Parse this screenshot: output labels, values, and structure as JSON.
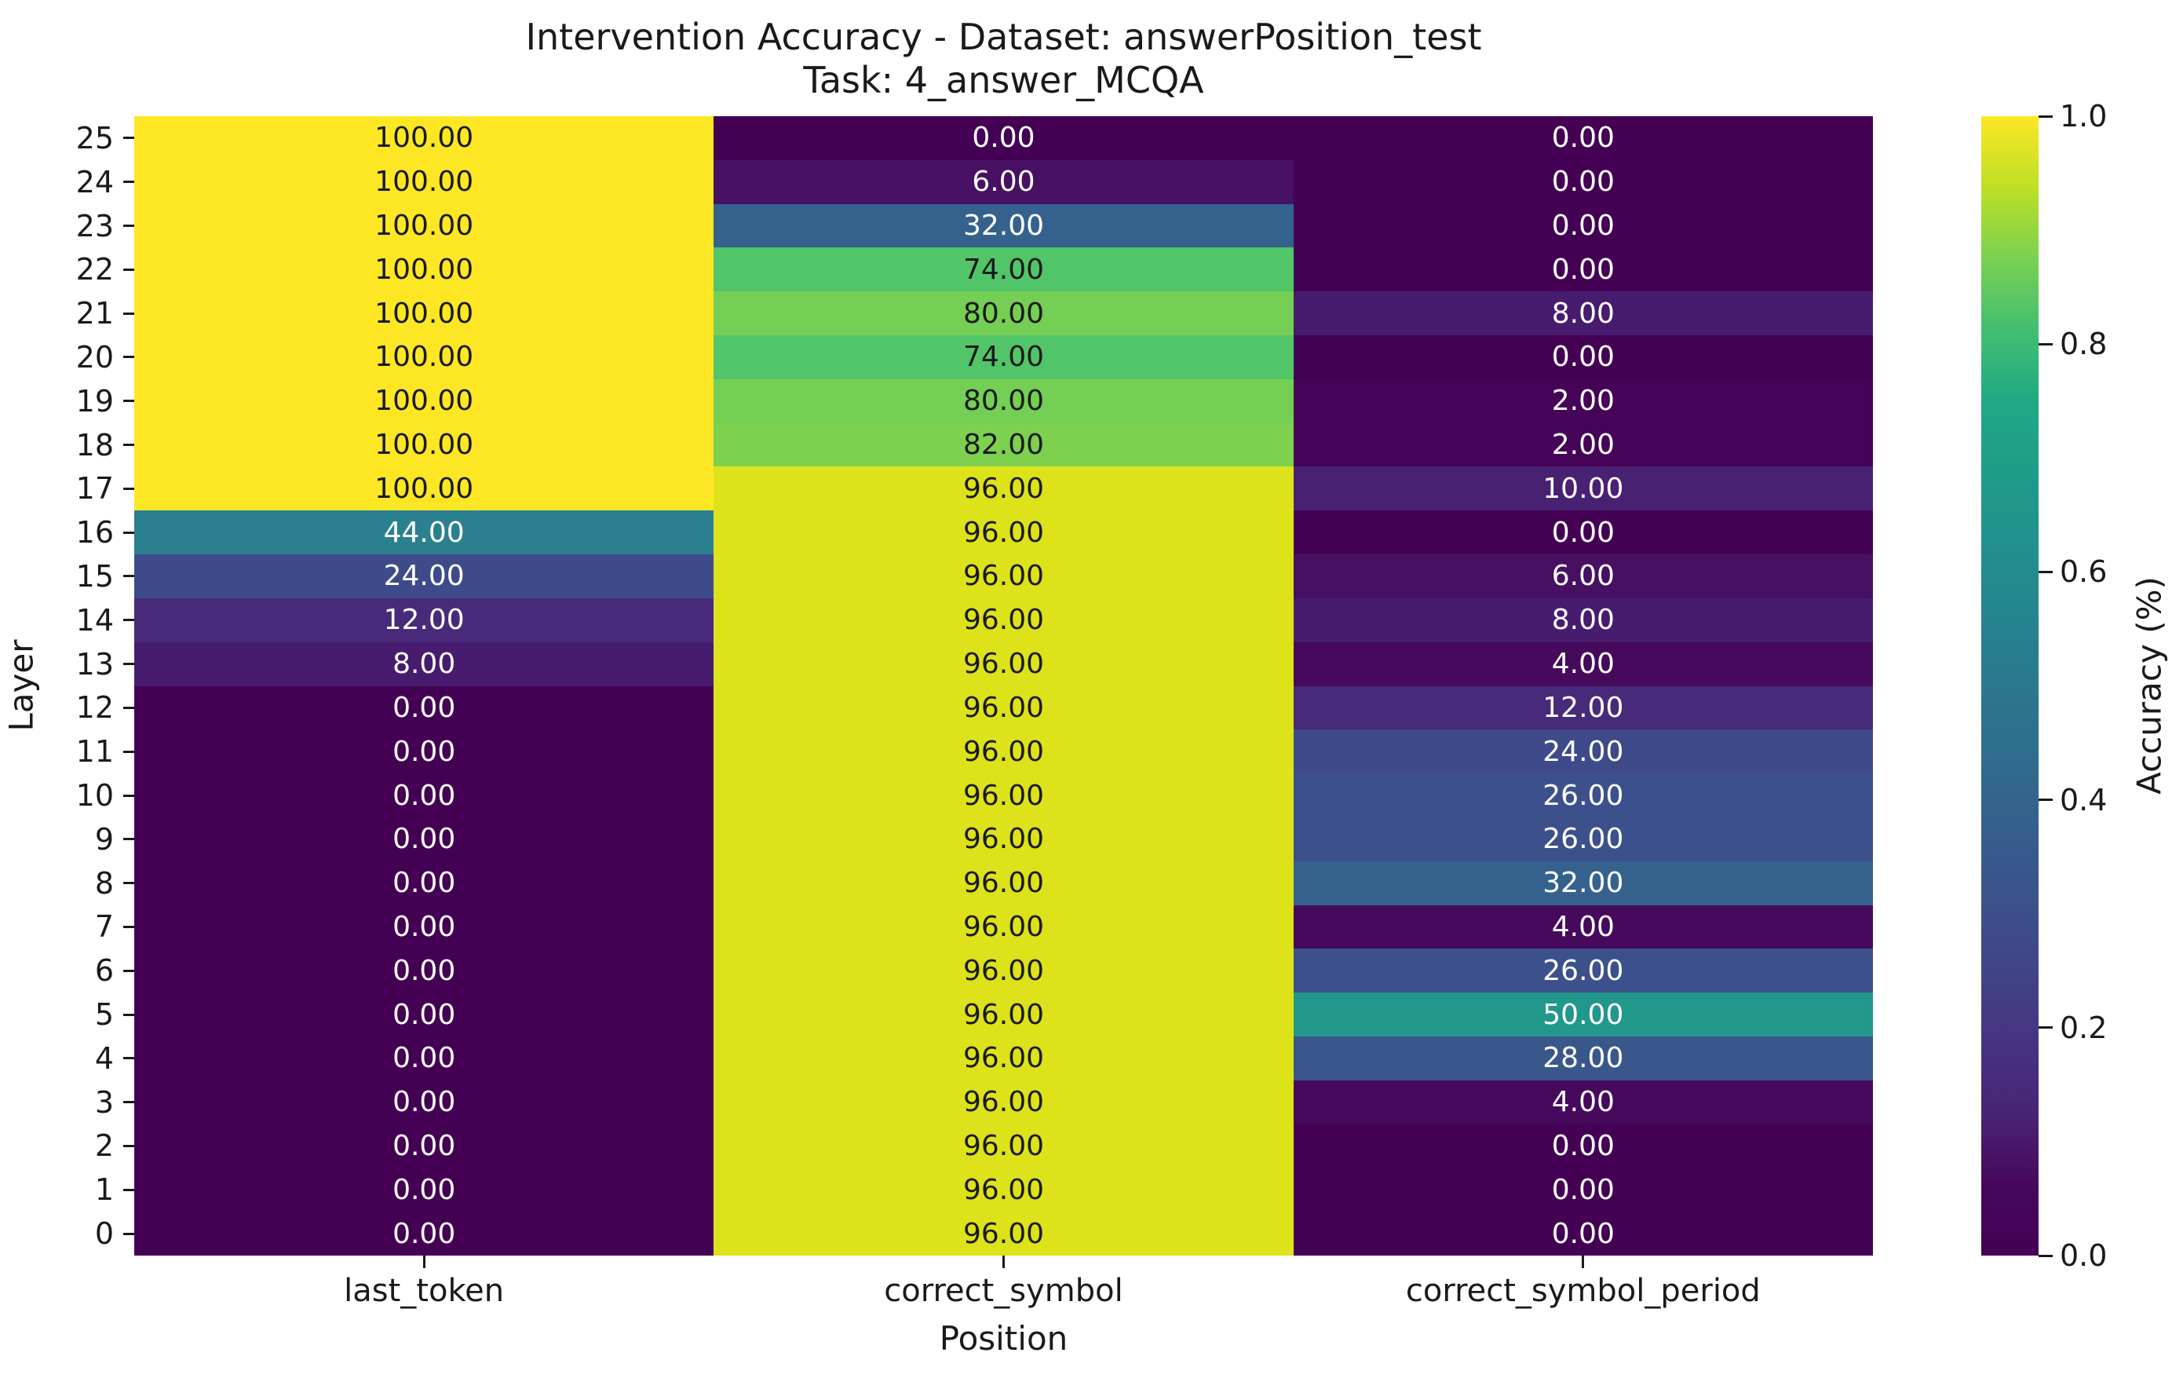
{
  "chart_data": {
    "type": "heatmap",
    "title": "Intervention Accuracy - Dataset: answerPosition_test\nTask: 4_answer_MCQA",
    "title_lines": [
      "Intervention Accuracy - Dataset: answerPosition_test",
      "Task: 4_answer_MCQA"
    ],
    "xlabel": "Position",
    "ylabel": "Layer",
    "colorbar_label": "Accuracy (%)",
    "colorbar_ticks": [
      "1.0",
      "0.8",
      "0.6",
      "0.4",
      "0.2",
      "0.0"
    ],
    "colorbar_range": [
      0.0,
      1.0
    ],
    "colormap": "viridis",
    "grid": false,
    "annotation_decimals": 2,
    "x_categories": [
      "last_token",
      "correct_symbol",
      "correct_symbol_period"
    ],
    "y_categories": [
      25,
      24,
      23,
      22,
      21,
      20,
      19,
      18,
      17,
      16,
      15,
      14,
      13,
      12,
      11,
      10,
      9,
      8,
      7,
      6,
      5,
      4,
      3,
      2,
      1,
      0
    ],
    "values": [
      [
        100,
        0,
        0
      ],
      [
        100,
        6,
        0
      ],
      [
        100,
        32,
        0
      ],
      [
        100,
        74,
        0
      ],
      [
        100,
        80,
        8
      ],
      [
        100,
        74,
        0
      ],
      [
        100,
        80,
        2
      ],
      [
        100,
        82,
        2
      ],
      [
        100,
        96,
        10
      ],
      [
        44,
        96,
        0
      ],
      [
        24,
        96,
        6
      ],
      [
        12,
        96,
        8
      ],
      [
        8,
        96,
        4
      ],
      [
        0,
        96,
        12
      ],
      [
        0,
        96,
        24
      ],
      [
        0,
        96,
        26
      ],
      [
        0,
        96,
        26
      ],
      [
        0,
        96,
        32
      ],
      [
        0,
        96,
        4
      ],
      [
        0,
        96,
        26
      ],
      [
        0,
        96,
        50
      ],
      [
        0,
        96,
        28
      ],
      [
        0,
        96,
        4
      ],
      [
        0,
        96,
        0
      ],
      [
        0,
        96,
        0
      ],
      [
        0,
        96,
        0
      ]
    ]
  },
  "style": {
    "background": "#ffffff",
    "text_color": "#1a1a1a",
    "annot_color_light": "#ffffff",
    "annot_color_dark": "#1a1a1a",
    "dark_text_min_value": 74,
    "value_colors": {
      "0": "#440154",
      "2": "#450458",
      "4": "#46095c",
      "6": "#471063",
      "8": "#471b6e",
      "10": "#482173",
      "12": "#472a7a",
      "24": "#3e4a89",
      "26": "#3c518c",
      "28": "#3a578c",
      "32": "#35628d",
      "44": "#2a808e",
      "50": "#21988b",
      "74": "#52c569",
      "80": "#74cf54",
      "82": "#7ed04f",
      "96": "#dde21a",
      "100": "#fde725"
    },
    "viridis_stops": [
      "#440154",
      "#46085c",
      "#482475",
      "#463480",
      "#414487",
      "#3b528b",
      "#355f8d",
      "#2f6c8e",
      "#2a788e",
      "#25848e",
      "#21918c",
      "#1e9c89",
      "#22a884",
      "#42be71",
      "#7ad151",
      "#bddf26",
      "#fde725"
    ]
  }
}
